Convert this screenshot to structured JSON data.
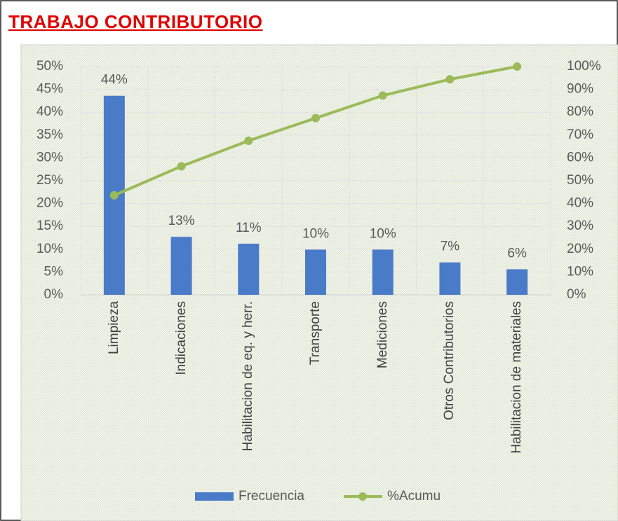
{
  "chart_data": {
    "type": "bar",
    "title": "TRABAJO CONTRIBUTORIO",
    "categories": [
      "Limpieza",
      "Indicaciones",
      "Habilitacion de eq. y herr.",
      "Transporte",
      "Mediciones",
      "Otros Contributorios",
      "Habilitacion de materiales"
    ],
    "series": [
      {
        "name": "Frecuencia",
        "type": "bar",
        "color": "#4a7bc8",
        "values": [
          43.6,
          12.7,
          11.2,
          9.9,
          9.9,
          7.1,
          5.6
        ],
        "value_labels": [
          "44%",
          "13%",
          "11%",
          "10%",
          "10%",
          "7%",
          "6%"
        ]
      },
      {
        "name": "%Acumu",
        "type": "line",
        "axis": "y2",
        "color": "#9bbb59",
        "values": [
          43.6,
          56.3,
          67.5,
          77.4,
          87.3,
          94.4,
          100
        ]
      }
    ],
    "ylim": [
      0,
      50
    ],
    "yticks": [
      {
        "value": 0,
        "label": "0%"
      },
      {
        "value": 5,
        "label": "5%"
      },
      {
        "value": 10,
        "label": "10%"
      },
      {
        "value": 15,
        "label": "15%"
      },
      {
        "value": 20,
        "label": "20%"
      },
      {
        "value": 25,
        "label": "25%"
      },
      {
        "value": 30,
        "label": "30%"
      },
      {
        "value": 35,
        "label": "35%"
      },
      {
        "value": 40,
        "label": "40%"
      },
      {
        "value": 45,
        "label": "45%"
      },
      {
        "value": 50,
        "label": "50%"
      }
    ],
    "y2lim": [
      0,
      100
    ],
    "y2ticks": [
      {
        "value": 0,
        "label": "0%"
      },
      {
        "value": 10,
        "label": "10%"
      },
      {
        "value": 20,
        "label": "20%"
      },
      {
        "value": 30,
        "label": "30%"
      },
      {
        "value": 40,
        "label": "40%"
      },
      {
        "value": 50,
        "label": "50%"
      },
      {
        "value": 60,
        "label": "60%"
      },
      {
        "value": 70,
        "label": "70%"
      },
      {
        "value": 80,
        "label": "80%"
      },
      {
        "value": 90,
        "label": "90%"
      },
      {
        "value": 100,
        "label": "100%"
      }
    ],
    "grid": true,
    "legend": "bottom"
  }
}
